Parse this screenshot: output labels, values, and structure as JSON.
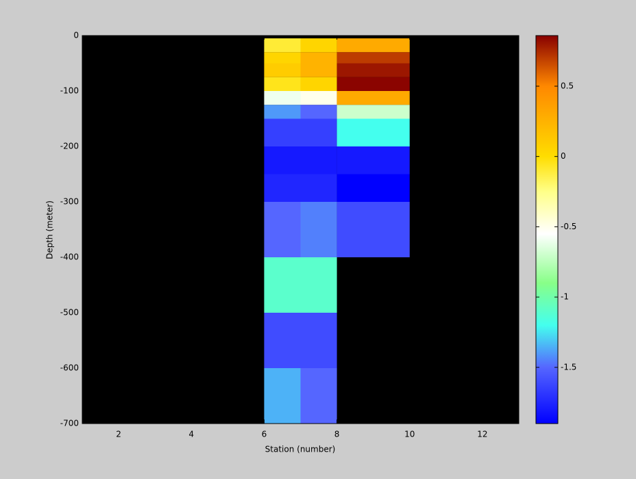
{
  "chart_data": {
    "type": "heatmap",
    "xlabel": "Station (number)",
    "ylabel": "Depth (meter)",
    "xlim": [
      1,
      13
    ],
    "xticks": [
      2,
      4,
      6,
      8,
      10,
      12
    ],
    "ylim": [
      -700,
      0
    ],
    "yticks": [
      -700,
      -600,
      -500,
      -400,
      -300,
      -200,
      -100,
      0
    ],
    "x_edges": [
      6,
      7,
      8,
      10
    ],
    "y_edges": [
      -5,
      -30,
      -50,
      -75,
      -100,
      -125,
      -150,
      -200,
      -250,
      -300,
      -400,
      -500,
      -600,
      -700
    ],
    "values": [
      [
        -0.1,
        0.05,
        0.3
      ],
      [
        0.05,
        0.25,
        0.7
      ],
      [
        0.1,
        0.25,
        0.8
      ],
      [
        -0.05,
        0.05,
        0.85
      ],
      [
        -0.6,
        -0.5,
        0.3
      ],
      [
        -1.4,
        -1.5,
        -0.7
      ],
      [
        -1.65,
        -1.65,
        -1.2
      ],
      [
        -1.8,
        -1.8,
        -1.8
      ],
      [
        -1.75,
        -1.75,
        -1.9
      ],
      [
        -1.5,
        -1.45,
        -1.6
      ],
      [
        -1.1,
        -1.1,
        null
      ],
      [
        -1.6,
        -1.6,
        null
      ],
      [
        -1.35,
        -1.5,
        null
      ]
    ],
    "clim": [
      -1.9,
      0.86
    ],
    "cticks": [
      -1.5,
      -1,
      -0.5,
      0,
      0.5
    ],
    "colormap": [
      {
        "value": -1.9,
        "color": "#0000ff"
      },
      {
        "value": -1.5,
        "color": "#5566ff"
      },
      {
        "value": -1.2,
        "color": "#44ffee"
      },
      {
        "value": -0.9,
        "color": "#88ff88"
      },
      {
        "value": -0.55,
        "color": "#ffffff"
      },
      {
        "value": -0.25,
        "color": "#ffff88"
      },
      {
        "value": 0,
        "color": "#ffdd00"
      },
      {
        "value": 0.5,
        "color": "#ff8800"
      },
      {
        "value": 0.86,
        "color": "#880000"
      }
    ]
  }
}
